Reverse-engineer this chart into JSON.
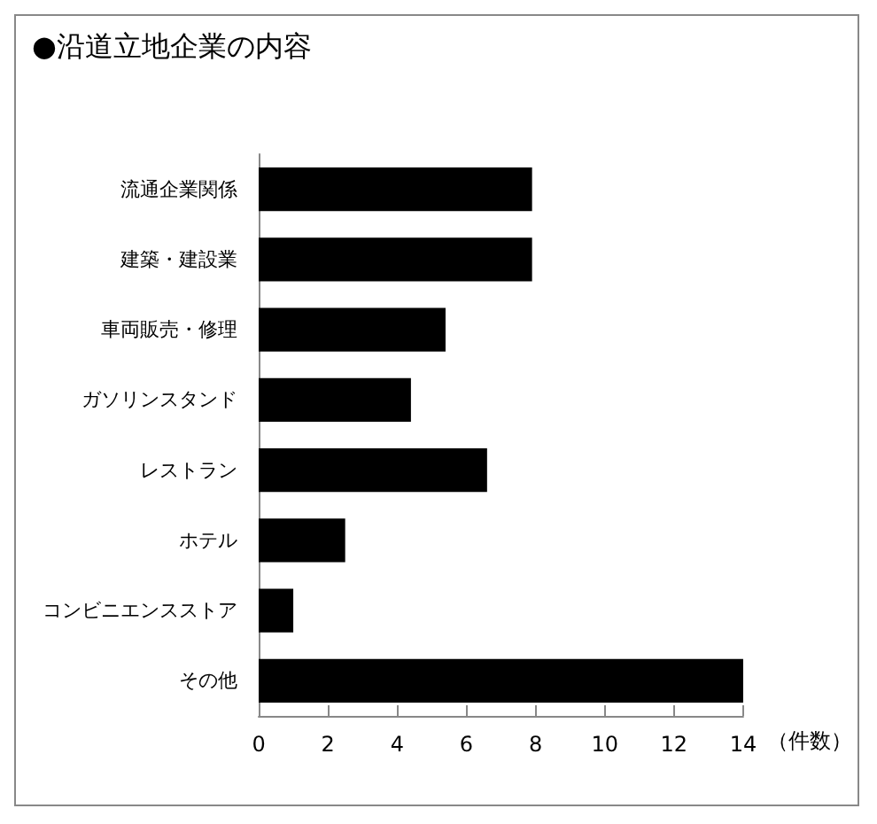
{
  "chart_data": {
    "type": "bar",
    "orientation": "horizontal",
    "title": "●沿道立地企業の内容",
    "xlabel": "（件数）",
    "categories": [
      "流通企業関係",
      "建築・建設業",
      "車両販売・修理",
      "ガソリンスタンド",
      "レストラン",
      "ホテル",
      "コンビニエンスストア",
      "その他"
    ],
    "values": [
      7.9,
      7.9,
      5.4,
      4.4,
      6.6,
      2.5,
      1,
      14
    ],
    "color": "#000000",
    "xlim": [
      0,
      14
    ],
    "xticks": [
      0,
      2,
      4,
      6,
      8,
      10,
      12,
      14
    ]
  }
}
